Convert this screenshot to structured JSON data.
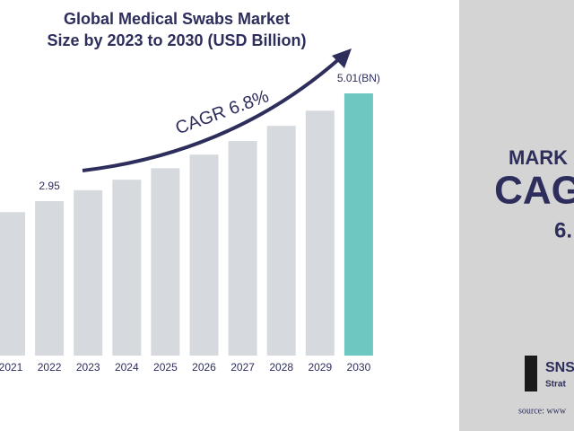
{
  "chart_data": {
    "type": "bar",
    "title": [
      "Global Medical Swabs Market",
      "Size by 2023 to 2030 (USD Billion)"
    ],
    "categories": [
      "2021",
      "2022",
      "2023",
      "2024",
      "2025",
      "2026",
      "2027",
      "2028",
      "2029",
      "2030"
    ],
    "values": [
      2.74,
      2.95,
      3.16,
      3.36,
      3.58,
      3.84,
      4.1,
      4.39,
      4.68,
      5.01
    ],
    "value_labels": [
      null,
      "2.95",
      null,
      null,
      null,
      null,
      null,
      null,
      null,
      "5.01(BN)"
    ],
    "colors": [
      "#d6dade",
      "#d6dade",
      "#d6dade",
      "#d6dade",
      "#d6dade",
      "#d6dade",
      "#d6dade",
      "#d6dade",
      "#d6dade",
      "#6ec8c1"
    ],
    "annotation": "CAGR 6.8%"
  },
  "side_panel": {
    "line1": "MARK",
    "line2": "CAG",
    "line3": "6.",
    "logo_top": "SNS",
    "logo_bottom": "Strat",
    "source": "source: www"
  }
}
